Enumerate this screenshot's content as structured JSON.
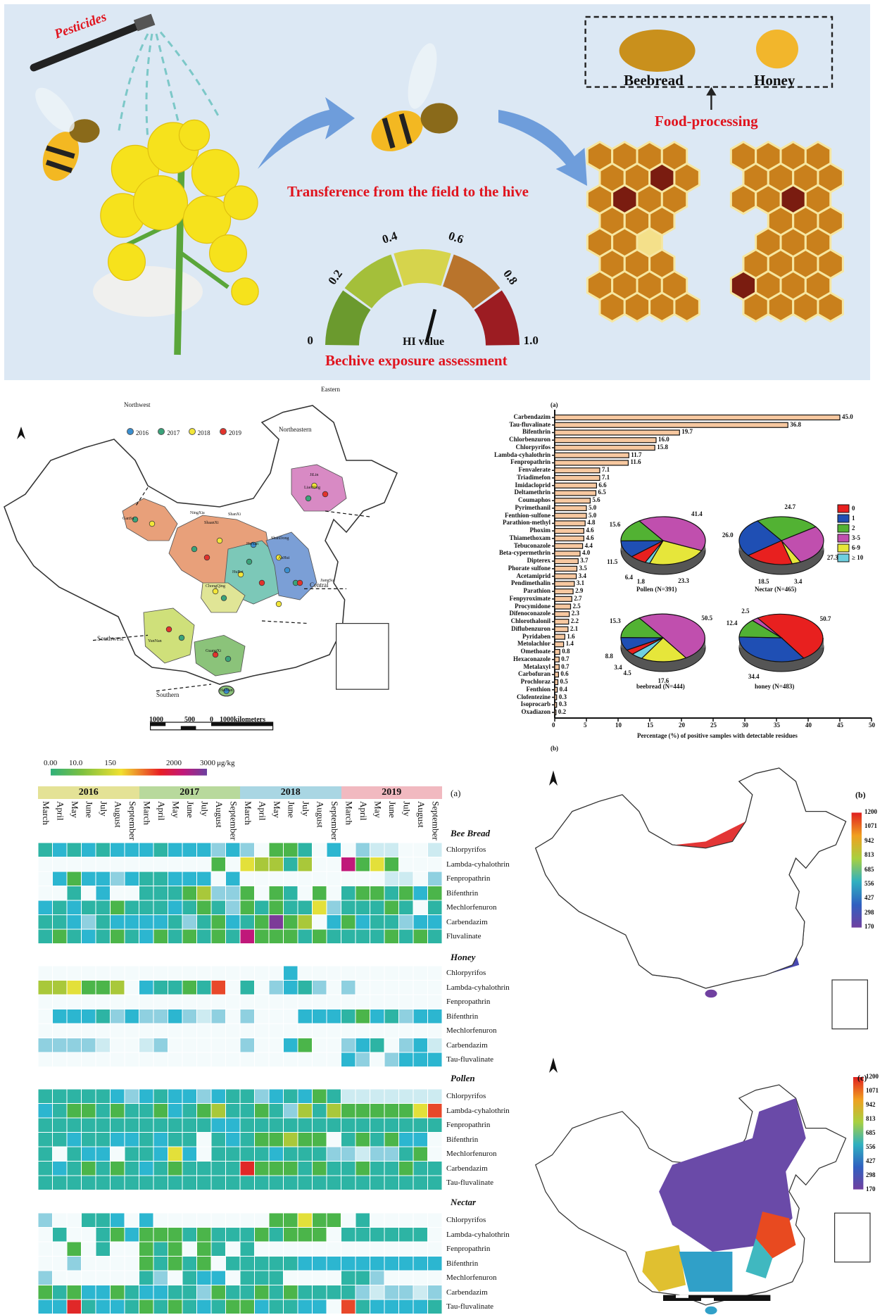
{
  "top_panel": {
    "pesticides": "Pesticides",
    "transference": "Transference from the field to the hive",
    "beebread": "Beebread",
    "honey": "Honey",
    "food_processing": "Food-processing",
    "hi_value": "HI value",
    "assessment": "Bechive exposure assessment",
    "gauge_ticks": [
      "0",
      "0.2",
      "0.4",
      "0.6",
      "0.8",
      "1.0"
    ],
    "gauge_colors": [
      "#6b9a2e",
      "#a4bf3a",
      "#d6d44c",
      "#b9742c",
      "#9c1c22"
    ],
    "hi_needle_value": 0.5
  },
  "sampling_map": {
    "legend": [
      {
        "label": "2016",
        "color": "#3a8fd0"
      },
      {
        "label": "2017",
        "color": "#3aa37a"
      },
      {
        "label": "2018",
        "color": "#f2e63a"
      },
      {
        "label": "2019",
        "color": "#e2332c"
      }
    ],
    "regions": [
      "Northwest",
      "Northeastern",
      "Eastern",
      "Central",
      "Southwest",
      "Southern"
    ],
    "provinces": [
      "GanSu",
      "NingXia",
      "ShanXi",
      "ShaanXi",
      "HeNan",
      "ShanDong",
      "AnHui",
      "HuBei",
      "JiangSu",
      "ChongQing",
      "YunNan",
      "GuangXi",
      "HaiNan",
      "JiLin",
      "LiaoNing"
    ],
    "scale": [
      "1000",
      "500",
      "0",
      "1000kilometers"
    ]
  },
  "bar_chart": {
    "panel_a": "(a)",
    "panel_b": "(b)"
  },
  "chart_data": [
    {
      "type": "bar",
      "orientation": "horizontal",
      "xlabel": "Percentage (%) of positive samples with detectable residues",
      "xlim": [
        0,
        50
      ],
      "xticks": [
        "0",
        "5",
        "10",
        "15",
        "20",
        "25",
        "30",
        "35",
        "40",
        "45",
        "50"
      ],
      "categories": [
        "Carbendazim",
        "Tau-fluvalinate",
        "Bifenthrin",
        "Chlorbenzuron",
        "Chlorpyrifos",
        "Lambda-cyhalothrin",
        "Fenpropathrin",
        "Fenvalerate",
        "Triadimefon",
        "Imidacloprid",
        "Deltamethrin",
        "Coumaphos",
        "Pyrimethanil",
        "Fenthion-sulfone",
        "Parathion-methyl",
        "Phoxim",
        "Thiamethoxam",
        "Tebuconazole",
        "Beta-cypermethrin",
        "Dipterex",
        "Phorate sulfone",
        "Acetamiprid",
        "Pendimethalin",
        "Parathion",
        "Fenpyroximate",
        "Procymidone",
        "Difenoconazole",
        "Chlorothalonil",
        "Diflubenzuron",
        "Pyridaben",
        "Metolachlor",
        "Omethoate",
        "Hexaconazole",
        "Metalaxyl",
        "Carbofuran",
        "Prochloraz",
        "Fenthion",
        "Clofentezine",
        "Isoprocarb",
        "Oxadiazon"
      ],
      "values": [
        45.0,
        36.8,
        19.7,
        16.0,
        15.8,
        11.7,
        11.6,
        7.1,
        7.1,
        6.6,
        6.5,
        5.6,
        5.0,
        5.0,
        4.8,
        4.6,
        4.6,
        4.4,
        4.0,
        3.7,
        3.5,
        3.4,
        3.1,
        2.9,
        2.7,
        2.5,
        2.3,
        2.2,
        2.1,
        1.6,
        1.4,
        0.8,
        0.7,
        0.7,
        0.6,
        0.5,
        0.4,
        0.3,
        0.3,
        0.2
      ],
      "labels": [
        "45.0",
        "36.8",
        "19.7",
        "16.0",
        "15.8",
        "11.7",
        "11.6",
        "7.1",
        "7.1",
        "6.6",
        "6.5",
        "5.6",
        "5.0",
        "5.0",
        "4.8",
        "4.6",
        "4.6",
        "4.4",
        "4.0",
        "3.7",
        "3.5",
        "3.4",
        "3.1",
        "2.9",
        "2.7",
        "2.5",
        "2.3",
        "2.2",
        "2.1",
        "1.6",
        "1.4",
        "0.8",
        "0.7",
        "0.7",
        "0.6",
        "0.5",
        "0.4",
        "0.3",
        "0.3",
        "0.2"
      ],
      "bar_color": "#f7c8a0"
    },
    {
      "type": "pie",
      "legend": [
        {
          "label": "0",
          "color": "#e8201f"
        },
        {
          "label": "1",
          "color": "#1f4fb4"
        },
        {
          "label": "2",
          "color": "#52b233"
        },
        {
          "label": "3-5",
          "color": "#c04fae"
        },
        {
          "label": "6-9",
          "color": "#e6e63a"
        },
        {
          "label": "≥ 10",
          "color": "#6fd0e0"
        }
      ],
      "pies": [
        {
          "title": "Pollen (N=391)",
          "slices": [
            {
              "cat": 3,
              "value": 41.4,
              "label": "41.4"
            },
            {
              "cat": 4,
              "value": 23.3,
              "label": "23.3"
            },
            {
              "cat": 5,
              "value": 1.8,
              "label": "1.8"
            },
            {
              "cat": 0,
              "value": 6.4,
              "label": "6.4"
            },
            {
              "cat": 1,
              "value": 11.5,
              "label": "11.5"
            },
            {
              "cat": 2,
              "value": 15.6,
              "label": "15.6"
            }
          ]
        },
        {
          "title": "Nectar (N=465)",
          "slices": [
            {
              "cat": 2,
              "value": 24.7,
              "label": "24.7"
            },
            {
              "cat": 3,
              "value": 27.3,
              "label": "27.3"
            },
            {
              "cat": 4,
              "value": 3.4,
              "label": "3.4"
            },
            {
              "cat": 0,
              "value": 18.5,
              "label": "18.5"
            },
            {
              "cat": 1,
              "value": 26.0,
              "label": "26.0"
            }
          ]
        },
        {
          "title": "beebread (N=444)",
          "slices": [
            {
              "cat": 3,
              "value": 50.5,
              "label": "50.5"
            },
            {
              "cat": 4,
              "value": 17.6,
              "label": "17.6"
            },
            {
              "cat": 5,
              "value": 4.5,
              "label": "4.5"
            },
            {
              "cat": 0,
              "value": 3.4,
              "label": "3.4"
            },
            {
              "cat": 1,
              "value": 8.8,
              "label": "8.8"
            },
            {
              "cat": 2,
              "value": 15.3,
              "label": "15.3"
            }
          ]
        },
        {
          "title": "honey (N=483)",
          "slices": [
            {
              "cat": 0,
              "value": 50.7,
              "label": "50.7"
            },
            {
              "cat": 1,
              "value": 34.4,
              "label": "34.4"
            },
            {
              "cat": 2,
              "value": 12.4,
              "label": "12.4"
            },
            {
              "cat": 3,
              "value": 2.5,
              "label": "2.5"
            }
          ]
        }
      ]
    },
    {
      "type": "heatmap",
      "colorbar": {
        "ticks": [
          "0.00",
          "10.0",
          "150",
          "2000",
          "3000"
        ],
        "unit": "μg/kg"
      },
      "panel": "(a)",
      "years": [
        {
          "label": "2016",
          "color": "#e4e296"
        },
        {
          "label": "2017",
          "color": "#b8d99c"
        },
        {
          "label": "2018",
          "color": "#a9d6e3"
        },
        {
          "label": "2019",
          "color": "#f1b9c0"
        }
      ],
      "months": [
        "March",
        "April",
        "May",
        "June",
        "July",
        "August",
        "September"
      ],
      "cell_colors": {
        "t": "#2db4a4",
        "c": "#2cb6d0",
        "l": "#8fd0e0",
        "p": "#cdebf1",
        "g": "#4bb54a",
        "y": "#a9c83a",
        "Y": "#e3e03a",
        "o": "#e8482a",
        "r": "#e02828",
        "m": "#c0187a",
        "v": "#7c3b98"
      },
      "sections": [
        {
          "title": "Bee Bread",
          "rows": [
            {
              "label": "Chlorpyrifos",
              "cells": "tctctccctccclcl.ggt.c.lpp..p"
            },
            {
              "label": "Lambda-cyhalothrin",
              "cells": "............g.Yyyty..mgYg..."
            },
            {
              "label": "Fenpropathrin",
              "cells": ".cgcclcttccc.c..........pp.l"
            },
            {
              "label": "Bifenthrin",
              "cells": "..t.c..tttgyllg.gt.g.tggtgcg"
            },
            {
              "label": "Mechlorfenuron",
              "cells": "ctcttgtttctgtlgtgttYltttgt.t"
            },
            {
              "label": "Carbendazim",
              "cells": "ttcltcccctltgctgvgy.cgcttlcc"
            },
            {
              "label": "Fluvalinate",
              "cells": "tgtctgtcgtgtgtmgggtgttttgtgt"
            }
          ]
        },
        {
          "title": "Honey",
          "rows": [
            {
              "label": "Chlorpyrifos",
              "cells": ".................c.........."
            },
            {
              "label": "Lambda-cyhalothrin",
              "cells": "yyYggy.cttgto.t.lctl.l......"
            },
            {
              "label": "Fenpropathrin",
              "cells": "............................"
            },
            {
              "label": "Bifenthrin",
              "cells": ".ccctlcllclpl.l...ccctgctlcc"
            },
            {
              "label": "Mechlorfenuron",
              "cells": "............................"
            },
            {
              "label": "Carbendazim",
              "cells": "llllp..pl.....l..cg..lct.lcp"
            },
            {
              "label": "Tau-fluvalinate",
              "cells": ".....................cl.lccc"
            }
          ]
        },
        {
          "title": "Pollen",
          "rows": [
            {
              "label": "Chlorpyrifos",
              "cells": "tttttclctcclcttlctcgtppppppp"
            },
            {
              "label": "Lambda-cyhalothrin",
              "cells": "ctggtgttgctgyttgtlytygggggYo"
            },
            {
              "label": "Fenpropathrin",
              "cells": "ttttttttttttccttttttttttttttt"
            },
            {
              "label": "Bifenthrin",
              "cells": "ttcttcctctt.tctggygg.tgtgcc."
            },
            {
              "label": "Mechlorfenuron",
              "cells": "t.tcc.ttcYc.ttttctttllplltg."
            },
            {
              "label": "Carbendazim",
              "cells": "tctgtgtctgttttrgggtgttgttgtt"
            },
            {
              "label": "Tau-fluvalinate",
              "cells": "tttttttttttttttttttttttttttt"
            }
          ]
        },
        {
          "title": "Nectar",
          "rows": [
            {
              "label": "Chlorpyrifos",
              "cells": "l..ttc.c........ggYgg.t......"
            },
            {
              "label": "Lambda-cyhalothrin",
              "cells": ".t..tgcgggtgtttgtggg.tttttt."
            },
            {
              "label": "Fenpropathrin",
              "cells": "..g.t..gtg.gt.t............."
            },
            {
              "label": "Bifenthrin",
              "cells": "..l....gtgtg.tttttccccccccccc"
            },
            {
              "label": "Mechlorfenuron",
              "cells": "l......tl.tcc.ttt....ttl...."
            },
            {
              "label": "Carbendazim",
              "cells": "gtgccgtccttlgttgtgttttlpllpl"
            },
            {
              "label": "Tau-fluvalinate",
              "cells": "ccrtcctgtgtctggcttcc.otcccctc"
            }
          ]
        }
      ]
    }
  ],
  "risk_maps": {
    "panel_b": "(b)",
    "panel_c": "(c)",
    "colorbar_ticks": [
      "1200",
      "1071",
      "942",
      "813",
      "685",
      "556",
      "427",
      "298",
      "170"
    ],
    "colorbar_colors": [
      "#e02020",
      "#f07020",
      "#f0c020",
      "#a8d040",
      "#40b860",
      "#30b0c0",
      "#3070c8",
      "#4848b0",
      "#7040a0"
    ]
  }
}
